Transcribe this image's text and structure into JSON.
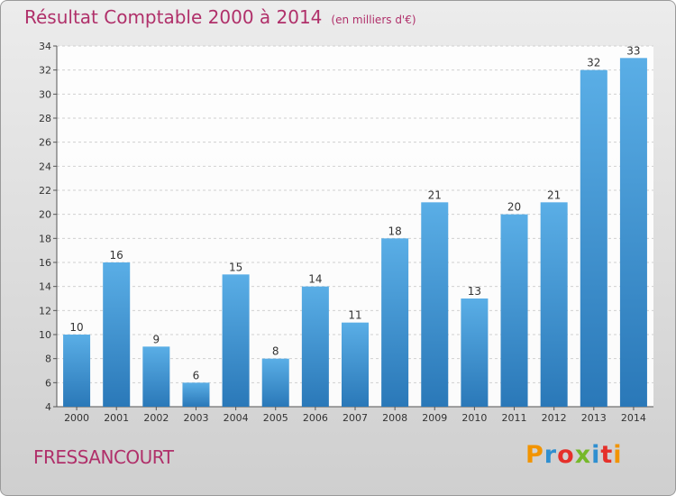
{
  "chart_data": {
    "type": "bar",
    "title": "Résultat Comptable 2000 à 2014",
    "subtitle": "(en milliers d'€)",
    "categories": [
      "2000",
      "2001",
      "2002",
      "2003",
      "2004",
      "2005",
      "2006",
      "2007",
      "2008",
      "2009",
      "2010",
      "2011",
      "2012",
      "2013",
      "2014"
    ],
    "values": [
      10,
      16,
      9,
      6,
      15,
      8,
      14,
      11,
      18,
      21,
      13,
      20,
      21,
      32,
      33
    ],
    "ylim": [
      4,
      34
    ],
    "yticks": [
      4,
      6,
      8,
      10,
      12,
      14,
      16,
      18,
      20,
      22,
      24,
      26,
      28,
      30,
      32,
      34
    ],
    "xlabel": "",
    "ylabel": "",
    "grid": true
  },
  "footer": {
    "place_name": "FRESSANCOURT",
    "logo_text": "Proxiti"
  },
  "colors": {
    "title": "#b0306a",
    "bar_light": "#5aaee6",
    "bar_dark": "#2a78b8",
    "logo": [
      "#f29400",
      "#2f8fd0",
      "#e5302a",
      "#76b82a",
      "#2f8fd0",
      "#e5302a",
      "#f29400"
    ]
  }
}
